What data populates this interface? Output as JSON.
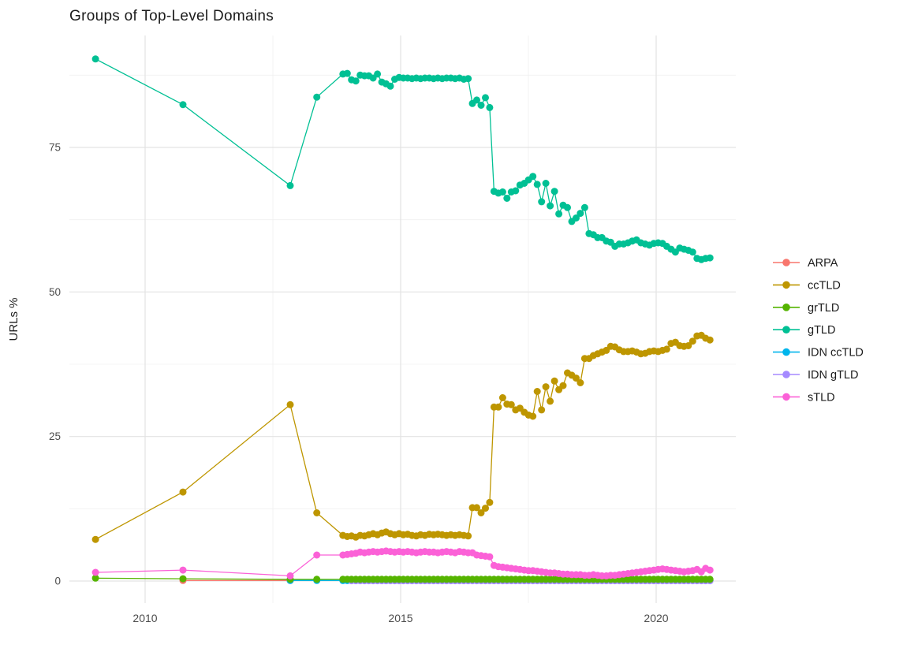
{
  "page": {
    "background": "#ffffff"
  },
  "colors": {
    "grid_major": "#e3e3e3",
    "grid_minor": "#f0f0f0",
    "tick_label": "#4d4d4d",
    "text": "#1c1c1c"
  },
  "chart_data": {
    "type": "line",
    "title": "Groups of Top-Level Domains",
    "xlabel": "",
    "ylabel": "URLs %",
    "grid": true,
    "legend_position": "right",
    "x_range": [
      2008.5,
      2021.6
    ],
    "y_range": [
      -3.9,
      94.4
    ],
    "x_ticks": [
      {
        "value": 2010,
        "label": "2010"
      },
      {
        "value": 2015,
        "label": "2015"
      },
      {
        "value": 2020,
        "label": "2020"
      }
    ],
    "y_ticks": [
      {
        "value": 0,
        "label": "0"
      },
      {
        "value": 25,
        "label": "25"
      },
      {
        "value": 50,
        "label": "50"
      },
      {
        "value": 75,
        "label": "75"
      }
    ],
    "x_minor": [
      2012.5,
      2017.5
    ],
    "y_minor": [
      12.5,
      37.5,
      62.5,
      87.5
    ],
    "series": [
      {
        "name": "ARPA",
        "color": "#F8766D",
        "z": 1,
        "points": [
          [
            2010.74,
            0.1
          ],
          [
            2012.84,
            0.1
          ]
        ]
      },
      {
        "name": "ccTLD",
        "color": "#BE9600",
        "z": 5,
        "points": [
          [
            2009.03,
            7.2
          ],
          [
            2010.74,
            15.4
          ],
          [
            2012.84,
            30.5
          ],
          [
            2013.36,
            11.8
          ]
        ],
        "dense": {
          "start": 2013.87,
          "step": 0.0845,
          "values": [
            7.9,
            7.7,
            7.8,
            7.6,
            7.9,
            7.8,
            8.0,
            8.2,
            8.0,
            8.3,
            8.5,
            8.2,
            8.0,
            8.2,
            8.0,
            8.1,
            7.9,
            7.8,
            8.0,
            7.9,
            8.1,
            8.0,
            8.1,
            8.0,
            7.9,
            8.0,
            7.9,
            8.0,
            7.9,
            7.8,
            12.7,
            12.7,
            11.8,
            12.6,
            13.6,
            30.1,
            30.1,
            31.7,
            30.6,
            30.5,
            29.6,
            29.9,
            29.2,
            28.7,
            28.5,
            32.8,
            29.6,
            33.6,
            31.1,
            34.6,
            33.1,
            33.8,
            36.0,
            35.6,
            35.1,
            34.3,
            38.5,
            38.5,
            39.0,
            39.3,
            39.6,
            39.9,
            40.6,
            40.5,
            40.0,
            39.7,
            39.7,
            39.8,
            39.6,
            39.3,
            39.4,
            39.7,
            39.8,
            39.7,
            39.9,
            40.1,
            41.1,
            41.3,
            40.7,
            40.6,
            40.7,
            41.5,
            42.4,
            42.5,
            42.0,
            41.7
          ]
        }
      },
      {
        "name": "grTLD",
        "color": "#55B400",
        "z": 4,
        "points": [
          [
            2009.03,
            0.5
          ],
          [
            2010.74,
            0.4
          ],
          [
            2012.84,
            0.3
          ],
          [
            2013.36,
            0.3
          ]
        ],
        "dense": {
          "start": 2013.87,
          "step": 0.0845,
          "count": 86,
          "fill_value": 0.3
        }
      },
      {
        "name": "gTLD",
        "color": "#00C094",
        "z": 6,
        "points": [
          [
            2009.03,
            90.3
          ],
          [
            2010.74,
            82.4
          ],
          [
            2012.84,
            68.4
          ],
          [
            2013.36,
            83.7
          ]
        ],
        "dense": {
          "start": 2013.87,
          "step": 0.0845,
          "values": [
            87.7,
            87.8,
            86.7,
            86.5,
            87.5,
            87.4,
            87.4,
            87.0,
            87.7,
            86.3,
            86.0,
            85.6,
            86.8,
            87.1,
            87.0,
            87.0,
            86.9,
            87.0,
            86.9,
            87.0,
            87.0,
            86.9,
            87.0,
            86.9,
            87.0,
            87.0,
            86.9,
            87.0,
            86.8,
            86.9,
            82.6,
            83.2,
            82.3,
            83.6,
            81.9,
            67.4,
            67.1,
            67.3,
            66.2,
            67.3,
            67.5,
            68.5,
            68.8,
            69.4,
            70.0,
            68.6,
            65.6,
            68.8,
            64.9,
            67.4,
            63.5,
            65.0,
            64.6,
            62.2,
            62.8,
            63.6,
            64.6,
            60.1,
            59.9,
            59.4,
            59.4,
            58.8,
            58.6,
            57.9,
            58.3,
            58.3,
            58.5,
            58.8,
            59.0,
            58.5,
            58.3,
            58.1,
            58.4,
            58.5,
            58.4,
            57.9,
            57.4,
            56.9,
            57.6,
            57.4,
            57.2,
            56.9,
            55.8,
            55.6,
            55.8,
            55.9
          ]
        }
      },
      {
        "name": "IDN ccTLD",
        "color": "#00B5EC",
        "z": 2,
        "points": [
          [
            2012.84,
            0.1
          ],
          [
            2013.36,
            0.1
          ]
        ],
        "dense": {
          "start": 2013.87,
          "step": 0.0845,
          "count": 86,
          "fill_value": 0.08
        }
      },
      {
        "name": "IDN gTLD",
        "color": "#A58AFF",
        "z": 3,
        "points": [],
        "dense": {
          "start": 2014.039,
          "step": 0.0845,
          "count": 84,
          "fill_value": 0.05
        }
      },
      {
        "name": "sTLD",
        "color": "#FB61D7",
        "z": 7,
        "points": [
          [
            2009.03,
            1.5
          ],
          [
            2010.74,
            1.9
          ],
          [
            2012.84,
            0.9
          ],
          [
            2013.36,
            4.5
          ]
        ],
        "dense": {
          "start": 2013.87,
          "step": 0.0845,
          "values": [
            4.5,
            4.6,
            4.7,
            4.8,
            5.0,
            4.9,
            5.0,
            5.1,
            5.0,
            5.1,
            5.2,
            5.1,
            5.0,
            5.1,
            5.0,
            5.1,
            5.0,
            4.9,
            5.0,
            5.1,
            5.0,
            5.0,
            4.9,
            5.0,
            5.1,
            5.0,
            4.9,
            5.1,
            5.0,
            4.9,
            4.9,
            4.5,
            4.4,
            4.3,
            4.2,
            2.7,
            2.5,
            2.4,
            2.3,
            2.2,
            2.1,
            2.0,
            1.9,
            1.8,
            1.8,
            1.7,
            1.6,
            1.5,
            1.4,
            1.4,
            1.3,
            1.2,
            1.2,
            1.1,
            1.1,
            1.1,
            1.0,
            1.0,
            1.1,
            1.0,
            0.9,
            0.9,
            1.0,
            1.0,
            1.1,
            1.2,
            1.3,
            1.4,
            1.5,
            1.6,
            1.7,
            1.8,
            1.9,
            2.0,
            2.1,
            2.0,
            1.9,
            1.8,
            1.7,
            1.6,
            1.7,
            1.8,
            2.0,
            1.6,
            2.2,
            1.9
          ]
        }
      }
    ]
  }
}
